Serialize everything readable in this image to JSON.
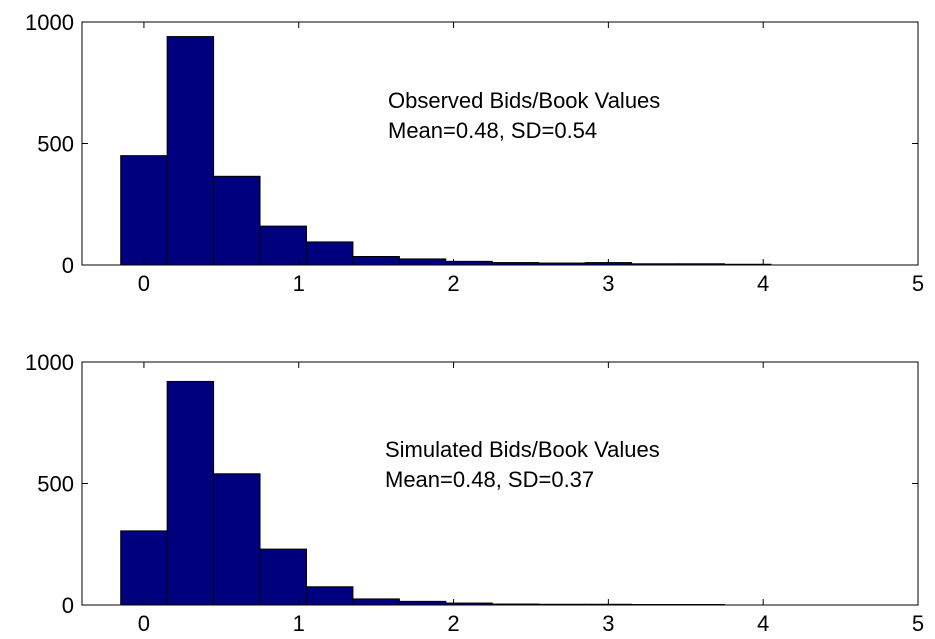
{
  "chart_data": [
    {
      "type": "bar",
      "annotation": [
        "Observed Bids/Book Values",
        "Mean=0.48, SD=0.54"
      ],
      "xlim": [
        -0.4,
        5
      ],
      "ylim": [
        0,
        1000
      ],
      "xticks": [
        "0",
        "1",
        "2",
        "3",
        "4",
        "5"
      ],
      "yticks": [
        "0",
        "500",
        "1000"
      ],
      "bin_centers": [
        0.0,
        0.3,
        0.6,
        0.9,
        1.2,
        1.5,
        1.8,
        2.1,
        2.4,
        2.7,
        3.0,
        3.3,
        3.6,
        3.9
      ],
      "values": [
        450,
        940,
        365,
        160,
        95,
        35,
        25,
        15,
        10,
        8,
        10,
        5,
        5,
        3
      ],
      "bar_color": "#00007f"
    },
    {
      "type": "bar",
      "annotation": [
        "Simulated Bids/Book Values",
        "Mean=0.48, SD=0.37"
      ],
      "xlim": [
        -0.4,
        5
      ],
      "ylim": [
        0,
        1000
      ],
      "xticks": [
        "0",
        "1",
        "2",
        "3",
        "4",
        "5"
      ],
      "yticks": [
        "0",
        "500",
        "1000"
      ],
      "bin_centers": [
        0.0,
        0.3,
        0.6,
        0.9,
        1.2,
        1.5,
        1.8,
        2.1,
        2.4,
        2.7,
        3.0,
        3.3,
        3.6,
        3.9
      ],
      "values": [
        305,
        920,
        540,
        230,
        75,
        25,
        15,
        8,
        4,
        3,
        3,
        2,
        2,
        0
      ],
      "bar_color": "#00007f"
    }
  ]
}
